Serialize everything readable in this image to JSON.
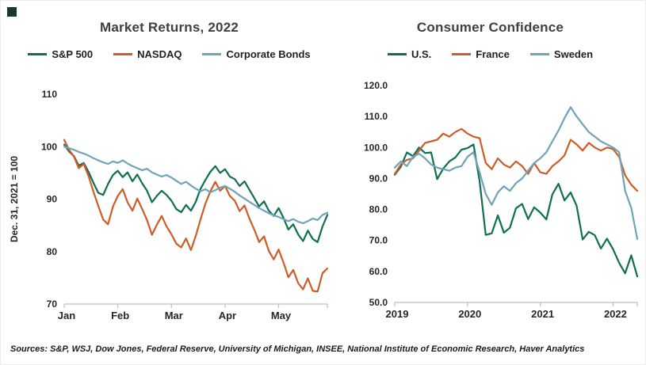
{
  "corner_mark": {
    "color": "#163a30"
  },
  "style": {
    "background": "#ffffff",
    "axis_color": "#bfbfbf",
    "tick_text_color": "#262626",
    "title_color": "#404040"
  },
  "footer": {
    "text": "Sources: S&P, WSJ, Dow Jones, Federal Reserve, University of Michigan,  INSEE, National Institute of Economic Research, Haver Analytics"
  },
  "chart_data": [
    {
      "type": "line",
      "title": "Market Returns, 2022",
      "xlabel": "",
      "ylabel": "Dec. 31, 2021 = 100",
      "ylim": [
        70,
        110
      ],
      "grid": false,
      "legend_position": "top",
      "ytick_values": [
        70,
        80,
        90,
        100,
        110
      ],
      "ytick_labels": [
        "70",
        "80",
        "90",
        "100",
        "110"
      ],
      "xtick_positions": [
        0,
        11,
        22,
        33,
        44
      ],
      "xtick_labels": [
        "Jan",
        "Feb",
        "Mar",
        "Apr",
        "May"
      ],
      "x_description": "trading days Jan-May 2022, 55 samples, index Dec 31 2021 = 100",
      "series": [
        {
          "name": "S&P 500",
          "color": "#0e6f51",
          "values": [
            100.4,
            99.1,
            98.2,
            96.4,
            96.9,
            95.2,
            93.1,
            91.2,
            90.8,
            92.9,
            94.6,
            95.4,
            94.2,
            95.1,
            93.4,
            94.7,
            93.0,
            91.6,
            89.4,
            90.6,
            91.6,
            90.8,
            89.7,
            88.1,
            87.5,
            88.9,
            87.8,
            89.5,
            92.0,
            93.7,
            95.2,
            96.3,
            95.0,
            95.7,
            94.3,
            93.8,
            92.5,
            93.4,
            91.8,
            90.2,
            88.6,
            89.6,
            87.8,
            86.8,
            88.3,
            86.4,
            84.2,
            85.2,
            83.3,
            82.0,
            84.0,
            82.4,
            81.8,
            84.8,
            87.0
          ]
        },
        {
          "name": "NASDAQ",
          "color": "#cd5c28",
          "values": [
            101.3,
            99.4,
            98.1,
            95.9,
            96.7,
            94.4,
            91.4,
            88.7,
            86.1,
            85.2,
            88.6,
            90.6,
            91.9,
            89.4,
            87.8,
            90.1,
            88.1,
            86.0,
            83.2,
            85.1,
            86.8,
            84.8,
            83.3,
            81.5,
            80.8,
            82.5,
            80.3,
            83.0,
            86.2,
            89.2,
            91.5,
            93.3,
            91.6,
            92.5,
            90.6,
            89.7,
            87.7,
            88.8,
            86.3,
            84.2,
            81.8,
            82.9,
            80.1,
            78.5,
            80.4,
            77.9,
            75.1,
            76.5,
            74.0,
            72.8,
            74.9,
            72.5,
            72.4,
            75.9,
            76.8
          ]
        },
        {
          "name": "Corporate Bonds",
          "color": "#6fa3b8",
          "values": [
            100.0,
            99.7,
            99.4,
            99.0,
            98.7,
            98.3,
            97.8,
            97.4,
            97.0,
            96.7,
            97.2,
            96.9,
            97.4,
            96.8,
            96.3,
            95.9,
            95.5,
            95.8,
            95.1,
            94.7,
            94.3,
            94.6,
            94.1,
            93.5,
            92.9,
            93.3,
            92.6,
            92.0,
            91.5,
            91.9,
            91.3,
            91.7,
            92.2,
            92.5,
            92.0,
            91.4,
            90.7,
            90.1,
            89.5,
            88.9,
            88.3,
            87.8,
            87.3,
            86.9,
            86.6,
            86.2,
            85.8,
            86.2,
            85.7,
            85.4,
            85.8,
            86.3,
            86.0,
            87.0,
            87.4
          ]
        }
      ]
    },
    {
      "type": "line",
      "title": "Consumer Confidence",
      "xlabel": "",
      "ylabel": "",
      "ylim": [
        50,
        120
      ],
      "grid": false,
      "legend_position": "top",
      "ytick_values": [
        50,
        60,
        70,
        80,
        90,
        100,
        110,
        120
      ],
      "ytick_labels": [
        "50.0",
        "60.0",
        "70.0",
        "80.0",
        "90.0",
        "100.0",
        "110.0",
        "120.0"
      ],
      "xtick_positions": [
        0,
        12,
        24,
        36
      ],
      "xtick_labels": [
        "2019",
        "2020",
        "2021",
        "2022"
      ],
      "x_description": "monthly, Jan 2019 - May 2022",
      "series": [
        {
          "name": "U.S.",
          "color": "#0e6f51",
          "values": [
            91.2,
            93.8,
            98.4,
            97.2,
            100.0,
            98.2,
            98.4,
            89.8,
            93.2,
            95.5,
            96.8,
            99.3,
            99.8,
            101.0,
            89.1,
            71.8,
            72.3,
            78.1,
            72.5,
            74.1,
            80.4,
            81.8,
            76.9,
            80.7,
            79.0,
            76.8,
            84.9,
            88.3,
            82.9,
            85.5,
            81.2,
            70.3,
            72.8,
            71.7,
            67.4,
            70.6,
            67.2,
            62.8,
            59.4,
            65.2,
            58.4
          ]
        },
        {
          "name": "France",
          "color": "#cd5c28",
          "values": [
            91.5,
            94.5,
            96.0,
            96.5,
            99.0,
            101.5,
            102.0,
            102.5,
            104.5,
            103.5,
            105.0,
            106.0,
            104.5,
            103.5,
            103.0,
            95.0,
            93.0,
            96.5,
            94.5,
            93.5,
            95.5,
            94.0,
            91.5,
            95.0,
            92.0,
            91.5,
            94.0,
            95.5,
            97.5,
            102.5,
            101.0,
            99.0,
            101.5,
            100.0,
            99.0,
            100.0,
            99.5,
            97.0,
            91.0,
            88.0,
            86.0
          ]
        },
        {
          "name": "Sweden",
          "color": "#6fa3b8",
          "values": [
            93.5,
            95.5,
            94.0,
            97.0,
            98.0,
            96.5,
            94.5,
            93.5,
            93.0,
            92.5,
            93.5,
            94.0,
            97.0,
            98.5,
            92.0,
            85.0,
            81.5,
            85.5,
            87.5,
            86.0,
            88.5,
            90.0,
            92.5,
            95.0,
            96.5,
            98.5,
            102.0,
            105.5,
            109.5,
            113.0,
            110.0,
            107.5,
            105.0,
            103.5,
            102.0,
            101.0,
            100.0,
            98.5,
            86.0,
            80.5,
            70.5
          ]
        }
      ]
    }
  ]
}
